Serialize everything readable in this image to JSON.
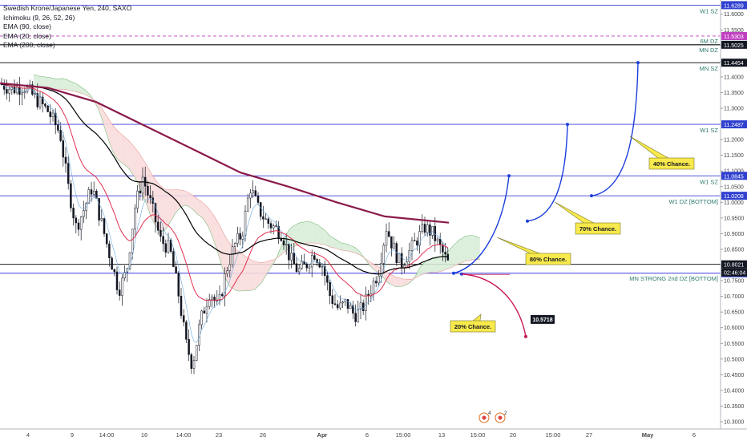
{
  "chart_data": {
    "type": "candlestick",
    "title": "Swedish Krone/Japanese Yen, 240, SAXO",
    "indicators": [
      "Ichimoku (9, 26, 52, 26)",
      "EMA (90, close)",
      "EMA (20, close)",
      "EMA (200, close)"
    ],
    "y_range": [
      10.3,
      11.63
    ],
    "y_ticks": [
      "11.6000",
      "11.5500",
      "11.5000",
      "11.4500",
      "11.4000",
      "11.3500",
      "11.3000",
      "11.2500",
      "11.2000",
      "11.1500",
      "11.1000",
      "11.0500",
      "11.0000",
      "10.9500",
      "10.9000",
      "10.8500",
      "10.8000",
      "10.7500",
      "10.7000",
      "10.6500",
      "10.6000",
      "10.5500",
      "10.5000",
      "10.4500",
      "10.4000",
      "10.3500",
      "10.3000"
    ],
    "x_labels": [
      "4",
      "9",
      "14:00",
      "16",
      "14:00",
      "23",
      "26",
      "Apr",
      "6",
      "15:00",
      "13",
      "15:00",
      "20",
      "15:00",
      "27",
      "May",
      "6"
    ],
    "price_levels": [
      {
        "price": 11.6289,
        "price_label": "11.6289",
        "text": "W1 SZ",
        "color": "#3c3cdc",
        "style": "solid"
      },
      {
        "price": 11.5303,
        "price_label": "11.5303",
        "text": "",
        "color": "#c040c0",
        "style": "dashed"
      },
      {
        "price": 11.5025,
        "price_label": "11.5025",
        "text": "6M DZ",
        "color": "#000000",
        "style": "solid"
      },
      {
        "price": 11.5025,
        "price_label": "",
        "text": "MN DZ",
        "color": "#000000",
        "style": "solid"
      },
      {
        "price": 11.4454,
        "price_label": "11.4454",
        "text": "MN SZ",
        "color": "#000000",
        "style": "solid"
      },
      {
        "price": 11.2487,
        "price_label": "11.2487",
        "text": "W1 SZ",
        "color": "#3c3cdc",
        "style": "solid"
      },
      {
        "price": 11.0845,
        "price_label": "11.0845",
        "text": "W1 SZ",
        "color": "#3c3cdc",
        "style": "solid"
      },
      {
        "price": 11.0208,
        "price_label": "11.0208",
        "text": "W1 DZ [BOTTOM]",
        "color": "#3c3cdc",
        "style": "solid"
      },
      {
        "price": 10.8021,
        "price_label": "10.8021",
        "text": "",
        "color": "#000000",
        "style": "solid"
      },
      {
        "price": 10.7738,
        "price_label": "10.7738",
        "text": "MN STRONG 2nd DZ [BOTTOM]",
        "color": "#3c3cdc",
        "style": "solid"
      }
    ],
    "countdown_label": "02:46:04",
    "scenarios": [
      {
        "label": "80% Chance.",
        "target": 11.0845,
        "color": "#1c3fdc"
      },
      {
        "label": "70% Chance.",
        "target": 11.2487,
        "color": "#1c3fdc"
      },
      {
        "label": "40% Chance.",
        "target": 11.4454,
        "color": "#1c3fdc"
      },
      {
        "label": "20% Chance.",
        "target": 10.5718,
        "color": "#c8185a"
      }
    ],
    "target_box": "10.5718",
    "event_markers": [
      "4",
      "2"
    ],
    "colors": {
      "ema200": "#8b1a4a",
      "ema90": "#000000",
      "ema20": "#e03050",
      "kumo_bull": "#d8ecd8",
      "kumo_bear": "#fadcdc"
    }
  }
}
